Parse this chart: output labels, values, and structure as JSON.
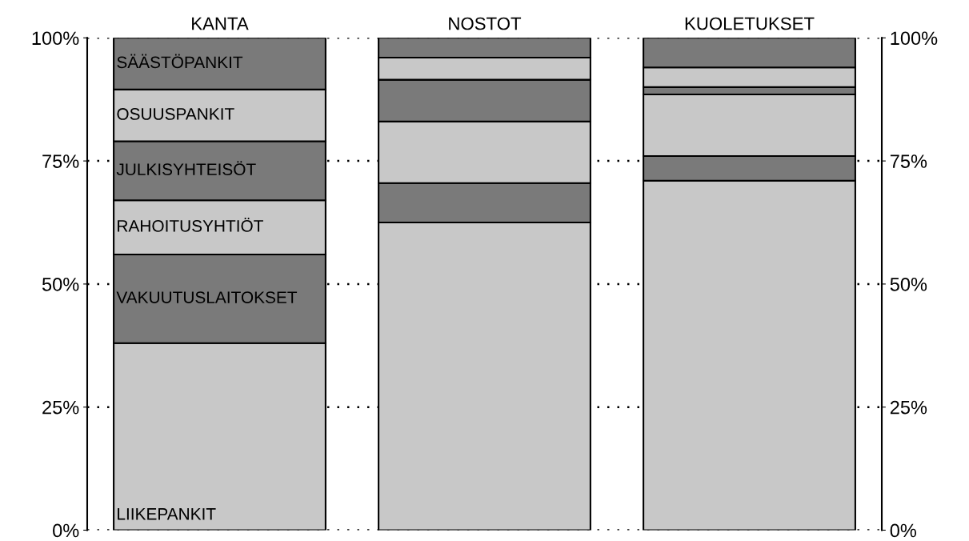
{
  "chart_data": {
    "type": "bar",
    "stacked": true,
    "categories": [
      "KANTA",
      "NOSTOT",
      "KUOLETUKSET"
    ],
    "series": [
      {
        "name": "LIIKEPANKIT",
        "color": "#c8c8c8",
        "values": [
          38,
          62.5,
          71
        ]
      },
      {
        "name": "VAKUUTUSLAITOKSET",
        "color": "#7a7a7a",
        "values": [
          18,
          8,
          5
        ]
      },
      {
        "name": "RAHOITUSYHTIÖT",
        "color": "#c8c8c8",
        "values": [
          11,
          12.5,
          12.5
        ]
      },
      {
        "name": "JULKISYHTEISÖT",
        "color": "#7a7a7a",
        "values": [
          12,
          8.5,
          1.5
        ]
      },
      {
        "name": "OSUUSPANKIT",
        "color": "#c8c8c8",
        "values": [
          10.5,
          4.5,
          4
        ]
      },
      {
        "name": "SÄÄSTÖPANKIT",
        "color": "#7a7a7a",
        "values": [
          10.5,
          4,
          6
        ]
      }
    ],
    "ylim": [
      0,
      100
    ],
    "yticks": [
      {
        "value": 0,
        "label": "0%"
      },
      {
        "value": 25,
        "label": "25%"
      },
      {
        "value": 50,
        "label": "50%"
      },
      {
        "value": 75,
        "label": "75%"
      },
      {
        "value": 100,
        "label": "100%"
      }
    ],
    "y2lim": [
      0,
      100
    ],
    "y2ticks": [
      {
        "value": 0,
        "label": "0%"
      },
      {
        "value": 25,
        "label": "25%"
      },
      {
        "value": 50,
        "label": "50%"
      },
      {
        "value": 75,
        "label": "75%"
      },
      {
        "value": 100,
        "label": "100%"
      }
    ],
    "grid": "y",
    "legend": false
  }
}
